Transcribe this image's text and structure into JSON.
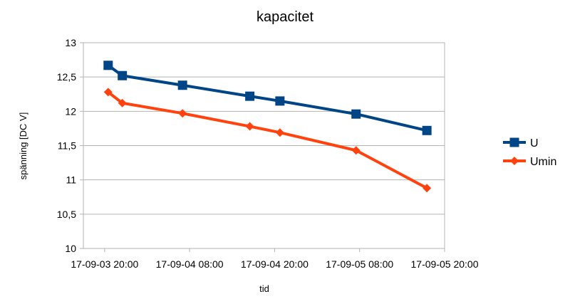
{
  "chart_data": {
    "type": "line",
    "title": "kapacitet",
    "xlabel": "tid",
    "ylabel": "spänning [DC V]",
    "ylim": [
      10,
      13
    ],
    "y_ticks": [
      10,
      10.5,
      11,
      11.5,
      12,
      12.5,
      13
    ],
    "y_tick_labels": [
      "10",
      "10,5",
      "11",
      "11,5",
      "12",
      "12,5",
      "13"
    ],
    "x_ticks": [
      "2017-09-03T20:00",
      "2017-09-04T08:00",
      "2017-09-04T20:00",
      "2017-09-05T08:00",
      "2017-09-05T20:00"
    ],
    "x_tick_labels": [
      "17-09-03 20:00",
      "17-09-04 08:00",
      "17-09-04 20:00",
      "17-09-05 08:00",
      "17-09-05 20:00"
    ],
    "grid": true,
    "legend_position": "right",
    "series": [
      {
        "name": "U",
        "color": "#004586",
        "marker": "square",
        "x": [
          "2017-09-03T20:30",
          "2017-09-03T22:30",
          "2017-09-04T07:00",
          "2017-09-04T16:30",
          "2017-09-04T20:45",
          "2017-09-05T07:30",
          "2017-09-05T17:30"
        ],
        "y": [
          12.67,
          12.52,
          12.38,
          12.22,
          12.15,
          11.96,
          11.72
        ]
      },
      {
        "name": "Umin",
        "color": "#ff420e",
        "marker": "diamond",
        "x": [
          "2017-09-03T20:30",
          "2017-09-03T22:30",
          "2017-09-04T07:00",
          "2017-09-04T16:30",
          "2017-09-04T20:45",
          "2017-09-05T07:30",
          "2017-09-05T17:30"
        ],
        "y": [
          12.28,
          12.12,
          11.97,
          11.78,
          11.69,
          11.43,
          10.88
        ]
      }
    ]
  }
}
